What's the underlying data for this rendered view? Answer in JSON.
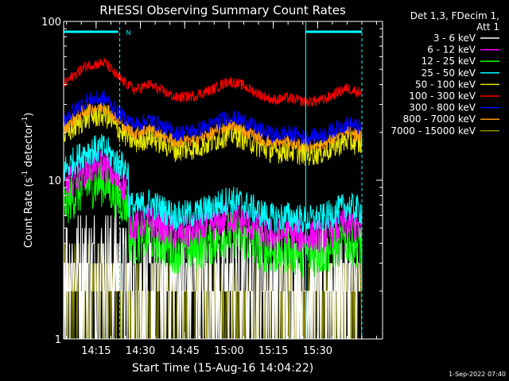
{
  "chart_data": {
    "type": "line",
    "title": "RHESSI Observing Summary Count Rates",
    "xlabel": "Start Time (15-Aug-16 14:04:22)",
    "ylabel_main": "Count Rate (s",
    "ylabel_sup1": "-1",
    "ylabel_mid": " detector",
    "ylabel_sup2": "-1",
    "ylabel_end": ")",
    "yscale": "log",
    "ylim": [
      1,
      100
    ],
    "y_ticks": [
      {
        "v": 1,
        "label": "1"
      },
      {
        "v": 10,
        "label": "10"
      },
      {
        "v": 100,
        "label": "100"
      }
    ],
    "xlim_minutes": [
      0,
      108
    ],
    "x_ticks": [
      {
        "t": 11,
        "label": "14:15"
      },
      {
        "t": 26,
        "label": "14:30"
      },
      {
        "t": 41,
        "label": "14:45"
      },
      {
        "t": 56,
        "label": "15:00"
      },
      {
        "t": 71,
        "label": "15:15"
      },
      {
        "t": 86,
        "label": "15:30"
      }
    ],
    "legend_header": [
      "Det 1,3, FDecim 1,",
      "Att 1"
    ],
    "series": [
      {
        "name": "3 - 6 keV",
        "color": "#ffffff"
      },
      {
        "name": "6 - 12 keV",
        "color": "#ff00ff"
      },
      {
        "name": "12 - 25 keV",
        "color": "#00ff00"
      },
      {
        "name": "25 - 50 keV",
        "color": "#00ffff"
      },
      {
        "name": "50 - 100 keV",
        "color": "#e6e600"
      },
      {
        "name": "100 - 300 keV",
        "color": "#ff0000"
      },
      {
        "name": "300 - 800 keV",
        "color": "#0000ff"
      },
      {
        "name": "800 - 7000 keV",
        "color": "#ff9900"
      },
      {
        "name": "7000 - 15000 keV",
        "color": "#8a8a00"
      }
    ],
    "trend_points": {
      "t": [
        0,
        8,
        14,
        18,
        24,
        29,
        34,
        38,
        44,
        50,
        56,
        60,
        66,
        71,
        76,
        82,
        88,
        92,
        96,
        100
      ],
      "rate_100_300": [
        40,
        53,
        55,
        45,
        37,
        40,
        36,
        33,
        34,
        37,
        42,
        40,
        35,
        32,
        33,
        31,
        32,
        35,
        38,
        36
      ]
    },
    "shading_markers": {
      "t_start": [
        19,
        82
      ],
      "t_end": [
        19,
        101
      ],
      "label_N": "N"
    },
    "footer_date": "1-Sep-2022 07:40"
  }
}
